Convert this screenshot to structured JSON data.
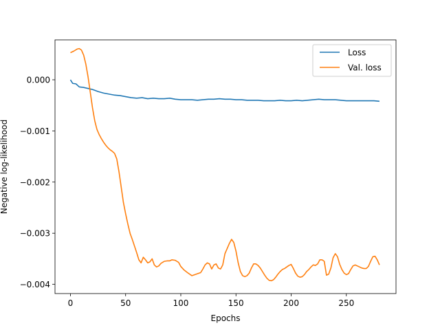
{
  "chart_data": {
    "type": "line",
    "title": "",
    "xlabel": "Epochs",
    "ylabel": "Negative log-likelihood",
    "xlim": [
      -14,
      295
    ],
    "ylim": [
      -0.00418,
      0.00078
    ],
    "xticks": [
      0,
      50,
      100,
      150,
      200,
      250
    ],
    "xtick_labels": [
      "0",
      "50",
      "100",
      "150",
      "200",
      "250"
    ],
    "yticks": [
      -0.004,
      -0.003,
      -0.002,
      -0.001,
      0.0
    ],
    "ytick_labels": [
      "−0.004",
      "−0.003",
      "−0.002",
      "−0.001",
      "0.000"
    ],
    "grid": false,
    "legend_position": "top-right",
    "series": [
      {
        "name": "Loss",
        "color": "#1f77b4",
        "x": [
          0,
          2,
          5,
          8,
          12,
          16,
          20,
          25,
          30,
          35,
          40,
          45,
          50,
          55,
          60,
          65,
          70,
          75,
          80,
          85,
          90,
          95,
          100,
          105,
          110,
          115,
          120,
          125,
          130,
          135,
          140,
          145,
          150,
          155,
          160,
          165,
          170,
          175,
          180,
          185,
          190,
          195,
          200,
          205,
          210,
          215,
          220,
          225,
          230,
          235,
          240,
          245,
          250,
          255,
          260,
          265,
          270,
          275,
          280
        ],
        "values": [
          0.0,
          -7e-05,
          -8e-05,
          -0.00014,
          -0.00015,
          -0.00017,
          -0.00019,
          -0.00023,
          -0.00026,
          -0.00028,
          -0.0003,
          -0.00031,
          -0.00033,
          -0.00035,
          -0.00036,
          -0.00035,
          -0.00037,
          -0.00036,
          -0.00037,
          -0.00037,
          -0.00036,
          -0.00038,
          -0.00039,
          -0.00039,
          -0.00039,
          -0.0004,
          -0.00039,
          -0.00038,
          -0.00038,
          -0.00037,
          -0.00038,
          -0.00038,
          -0.00039,
          -0.00039,
          -0.0004,
          -0.0004,
          -0.0004,
          -0.00041,
          -0.00041,
          -0.00041,
          -0.0004,
          -0.00041,
          -0.00041,
          -0.0004,
          -0.00041,
          -0.0004,
          -0.00039,
          -0.00038,
          -0.00039,
          -0.00039,
          -0.00039,
          -0.0004,
          -0.00041,
          -0.00041,
          -0.00041,
          -0.00041,
          -0.00041,
          -0.00041,
          -0.00042
        ]
      },
      {
        "name": "Val. loss",
        "color": "#ff7f0e",
        "x": [
          0,
          3,
          6,
          8,
          10,
          12,
          14,
          16,
          18,
          20,
          22,
          24,
          26,
          28,
          30,
          32,
          34,
          36,
          38,
          40,
          42,
          44,
          46,
          48,
          50,
          52,
          54,
          56,
          58,
          60,
          62,
          64,
          66,
          68,
          70,
          72,
          74,
          76,
          78,
          80,
          82,
          85,
          88,
          90,
          92,
          95,
          98,
          100,
          103,
          106,
          110,
          114,
          118,
          120,
          122,
          124,
          126,
          128,
          130,
          132,
          134,
          136,
          138,
          140,
          142,
          144,
          146,
          148,
          150,
          152,
          154,
          156,
          158,
          160,
          162,
          164,
          166,
          168,
          170,
          172,
          174,
          176,
          178,
          180,
          182,
          184,
          186,
          188,
          190,
          192,
          194,
          196,
          198,
          200,
          202,
          204,
          206,
          208,
          210,
          212,
          214,
          216,
          218,
          220,
          222,
          224,
          226,
          228,
          230,
          232,
          234,
          236,
          238,
          240,
          242,
          244,
          246,
          248,
          250,
          252,
          254,
          256,
          258,
          260,
          262,
          264,
          266,
          268,
          270,
          272,
          274,
          276,
          278,
          280
        ],
        "values": [
          0.00053,
          0.00056,
          0.0006,
          0.00061,
          0.00058,
          0.00048,
          0.0003,
          5e-05,
          -0.00025,
          -0.00055,
          -0.0008,
          -0.00097,
          -0.00107,
          -0.00115,
          -0.00122,
          -0.00128,
          -0.00133,
          -0.00137,
          -0.0014,
          -0.00144,
          -0.00155,
          -0.0018,
          -0.0021,
          -0.0024,
          -0.00262,
          -0.00282,
          -0.003,
          -0.00312,
          -0.00325,
          -0.00338,
          -0.00352,
          -0.00358,
          -0.00347,
          -0.00352,
          -0.00358,
          -0.00356,
          -0.0035,
          -0.00362,
          -0.00366,
          -0.00364,
          -0.00359,
          -0.00355,
          -0.00354,
          -0.00354,
          -0.00352,
          -0.00353,
          -0.00357,
          -0.00365,
          -0.00372,
          -0.00377,
          -0.00383,
          -0.0038,
          -0.00377,
          -0.0037,
          -0.00362,
          -0.00358,
          -0.0036,
          -0.0037,
          -0.00362,
          -0.0036,
          -0.00368,
          -0.0037,
          -0.00362,
          -0.0034,
          -0.0033,
          -0.0032,
          -0.00312,
          -0.00318,
          -0.00335,
          -0.00358,
          -0.00375,
          -0.00383,
          -0.00385,
          -0.00383,
          -0.00378,
          -0.00368,
          -0.0036,
          -0.0036,
          -0.00363,
          -0.00368,
          -0.00375,
          -0.00382,
          -0.00388,
          -0.00392,
          -0.00393,
          -0.00391,
          -0.00386,
          -0.0038,
          -0.00375,
          -0.00371,
          -0.00369,
          -0.00366,
          -0.00363,
          -0.00361,
          -0.00369,
          -0.00378,
          -0.00384,
          -0.00386,
          -0.00385,
          -0.00381,
          -0.00375,
          -0.00371,
          -0.00366,
          -0.00362,
          -0.00363,
          -0.0036,
          -0.00352,
          -0.00352,
          -0.00355,
          -0.00382,
          -0.0038,
          -0.00368,
          -0.00348,
          -0.0034,
          -0.00346,
          -0.00361,
          -0.00371,
          -0.00378,
          -0.00381,
          -0.00379,
          -0.00371,
          -0.00364,
          -0.00362,
          -0.00364,
          -0.00366,
          -0.00368,
          -0.00369,
          -0.00369,
          -0.00365,
          -0.00355,
          -0.00346,
          -0.00345,
          -0.00352,
          -0.00362
        ]
      }
    ]
  }
}
